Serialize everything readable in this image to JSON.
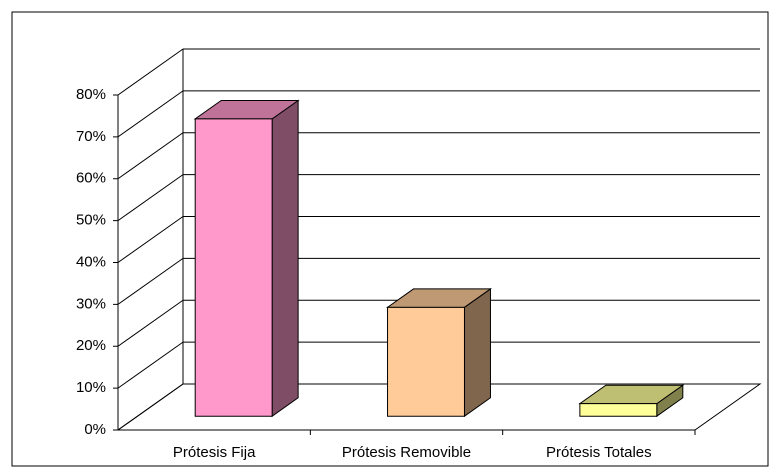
{
  "chart_data": {
    "type": "bar3d",
    "categories": [
      "Prótesis Fija",
      "Prótesis Removible",
      "Prótesis Totales"
    ],
    "values": [
      71,
      26,
      3
    ],
    "colors": [
      "#FF99CC",
      "#FFCC99",
      "#FFFF99"
    ],
    "ylim": [
      0,
      80
    ],
    "yticks": [
      {
        "value": 0,
        "label": "0%"
      },
      {
        "value": 10,
        "label": "10%"
      },
      {
        "value": 20,
        "label": "20%"
      },
      {
        "value": 30,
        "label": "30%"
      },
      {
        "value": 40,
        "label": "40%"
      },
      {
        "value": 50,
        "label": "50%"
      },
      {
        "value": 60,
        "label": "60%"
      },
      {
        "value": 70,
        "label": "70%"
      },
      {
        "value": 80,
        "label": "80%"
      }
    ],
    "grid": true
  }
}
